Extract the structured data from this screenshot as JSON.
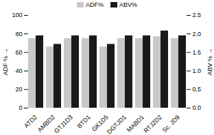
{
  "chart_data": {
    "type": "bar",
    "categories": [
      "ATD2",
      "AMBD2",
      "GTJ1D3",
      "BTD1",
      "GK1D5",
      "DGTJD1",
      "MABD1",
      "RTJ2D2",
      "Sc. JD9"
    ],
    "series": [
      {
        "name": "ADF%",
        "color": "#c8c8c8",
        "values": [
          75,
          66,
          75,
          75,
          66,
          75,
          75,
          77,
          75
        ]
      },
      {
        "name": "ABV%",
        "color": "#1a1a1a",
        "axis": "y2",
        "values": [
          1.95,
          1.72,
          1.95,
          1.95,
          1.72,
          1.95,
          1.95,
          2.08,
          1.95
        ]
      }
    ],
    "ylabel": "ADF %",
    "y2label": "ABV %",
    "ylim": [
      0,
      100
    ],
    "yticks": [
      0,
      20,
      40,
      60,
      80,
      100
    ],
    "y2lim": [
      0,
      2.5
    ],
    "y2ticks": [
      {
        "value": 0,
        "label": "0.0"
      },
      0.5,
      {
        "value": 1,
        "label": "1.0"
      },
      1.5,
      {
        "value": 2,
        "label": "2.0"
      },
      2.5
    ],
    "legend": "top",
    "grid": false
  }
}
